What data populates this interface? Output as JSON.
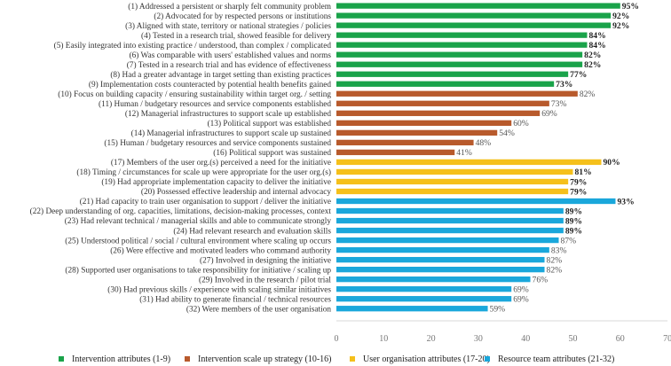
{
  "chart_data": {
    "type": "bar",
    "orientation": "horizontal",
    "title": "",
    "xlabel": "",
    "ylabel": "",
    "xlim": [
      0,
      70
    ],
    "xticks": [
      "0",
      "10",
      "20",
      "30",
      "40",
      "50",
      "60",
      "70"
    ],
    "grid": false,
    "legend_position": "bottom",
    "groups": [
      {
        "name": "Intervention attributes (1-9)",
        "color": "#1aa34a"
      },
      {
        "name": "Intervention scale up strategy (10-16)",
        "color": "#b85a2c"
      },
      {
        "name": "User organisation attributes (17-20)",
        "color": "#f5c01b"
      },
      {
        "name": "Resource team attributes (21-32)",
        "color": "#1aa7db"
      }
    ],
    "items": [
      {
        "label": "(1) Addressed a persistent or sharply felt community problem",
        "value": 60,
        "pct": "95%",
        "group": 0
      },
      {
        "label": "(2) Advocated for by respected persons or institutions",
        "value": 58,
        "pct": "92%",
        "group": 0
      },
      {
        "label": "(3) Aligned with state, territory or national strategies / policies",
        "value": 58,
        "pct": "92%",
        "group": 0
      },
      {
        "label": "(4) Tested in a research trial, showed feasible for delivery",
        "value": 53,
        "pct": "84%",
        "group": 0
      },
      {
        "label": "(5) Easily integrated into existing practice / understood, than complex / complicated",
        "value": 53,
        "pct": "84%",
        "group": 0
      },
      {
        "label": "(6) Was comparable with users' established values and norms",
        "value": 52,
        "pct": "82%",
        "group": 0
      },
      {
        "label": "(7) Tested in a research trial and has evidence of effectiveness",
        "value": 52,
        "pct": "82%",
        "group": 0
      },
      {
        "label": "(8) Had a greater advantage in target setting than existing practices",
        "value": 49,
        "pct": "77%",
        "group": 0
      },
      {
        "label": "(9) Implementation costs counteracted by potential health benefits gained",
        "value": 46,
        "pct": "73%",
        "group": 0
      },
      {
        "label": "(10) Focus on building capacity / ensuring sustainability within target org. / setting",
        "value": 51,
        "pct": "82%",
        "group": 1
      },
      {
        "label": "(11) Human / budgetary resources and service components established",
        "value": 45,
        "pct": "73%",
        "group": 1
      },
      {
        "label": "(12) Managerial infrastructures to support scale up established",
        "value": 43,
        "pct": "69%",
        "group": 1
      },
      {
        "label": "(13) Political support was established",
        "value": 37,
        "pct": "60%",
        "group": 1
      },
      {
        "label": "(14) Managerial infrastructures to support scale up sustained",
        "value": 34,
        "pct": "54%",
        "group": 1
      },
      {
        "label": "(15) Human / budgetary resources and service components sustained",
        "value": 29,
        "pct": "48%",
        "group": 1
      },
      {
        "label": "(16) Political support was sustained",
        "value": 25,
        "pct": "41%",
        "group": 1
      },
      {
        "label": "(17) Members of the user org.(s) perceived a need for the initiative",
        "value": 56,
        "pct": "90%",
        "group": 2
      },
      {
        "label": "(18) Timing / circumstances for scale up were appropriate for the user org.(s)",
        "value": 50,
        "pct": "81%",
        "group": 2
      },
      {
        "label": "(19) Had appropriate implementation capacity to deliver the initiative",
        "value": 49,
        "pct": "79%",
        "group": 2
      },
      {
        "label": "(20) Possessed effective leadership and internal advocacy",
        "value": 49,
        "pct": "79%",
        "group": 2
      },
      {
        "label": "(21) Had capacity to train user organisation to support / deliver the initiative",
        "value": 59,
        "pct": "93%",
        "group": 3
      },
      {
        "label": "(22) Deep understanding of org. capacities, limitations, decision-making processes, context",
        "value": 48,
        "pct": "89%",
        "group": 3
      },
      {
        "label": "(23) Had relevant technical / managerial skills and able to communicate strongly",
        "value": 48,
        "pct": "89%",
        "group": 3
      },
      {
        "label": "(24) Had relevant research and evaluation skills",
        "value": 48,
        "pct": "89%",
        "group": 3
      },
      {
        "label": "(25) Understood  political / social / cultural environment where scaling up occurs",
        "value": 47,
        "pct": "87%",
        "group": 3
      },
      {
        "label": "(26) Were effective and motivated leaders who command authority",
        "value": 45,
        "pct": "83%",
        "group": 3
      },
      {
        "label": "(27) Involved in designing the initiative",
        "value": 44,
        "pct": "82%",
        "group": 3
      },
      {
        "label": "(28) Supported user organisations to take responsibility for  initiative / scaling up",
        "value": 44,
        "pct": "82%",
        "group": 3
      },
      {
        "label": "(29) Involved in the research / pilot trial",
        "value": 41,
        "pct": "76%",
        "group": 3
      },
      {
        "label": "(30) Had previous skills / experience with scaling similar initiatives",
        "value": 37,
        "pct": "69%",
        "group": 3
      },
      {
        "label": "(31) Had ability to generate financial / technical resources",
        "value": 37,
        "pct": "69%",
        "group": 3
      },
      {
        "label": "(32) Were members of the user organisation",
        "value": 32,
        "pct": "59%",
        "group": 3
      }
    ]
  }
}
